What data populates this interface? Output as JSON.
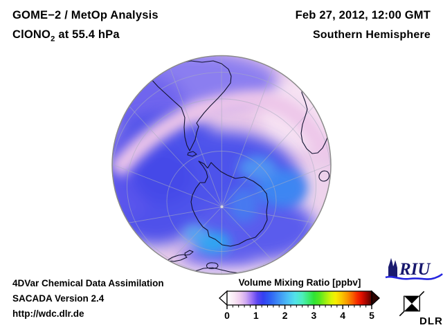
{
  "header": {
    "instrument": "GOME−2 / MetOp Analysis",
    "species_prefix": "ClONO",
    "species_sub": "2",
    "species_suffix": " at 55.4 hPa",
    "datetime": "Feb 27, 2012, 12:00 GMT",
    "hemisphere": "Southern Hemisphere"
  },
  "footer": {
    "line1": "4DVar Chemical Data Assimilation",
    "line2": "SACADA Version 2.4",
    "line3": "http://wdc.dlr.de"
  },
  "colorbar": {
    "title": "Volume Mixing Ratio [ppbv]",
    "min": 0,
    "max": 5,
    "major_ticks": [
      "0",
      "1",
      "2",
      "3",
      "4",
      "5"
    ],
    "minor_tick_step": 0.2,
    "under_arrow_color": "#ffffff",
    "over_arrow_color": "#2e0502",
    "gradient_stops": [
      [
        0.0,
        "#ffffff"
      ],
      [
        0.05,
        "#f8e8f5"
      ],
      [
        0.09,
        "#efcdf0"
      ],
      [
        0.13,
        "#cfaaf2"
      ],
      [
        0.17,
        "#9d74f4"
      ],
      [
        0.21,
        "#5b45f1"
      ],
      [
        0.25,
        "#3340f2"
      ],
      [
        0.3,
        "#2f62f4"
      ],
      [
        0.36,
        "#3f92f5"
      ],
      [
        0.42,
        "#4cc0f6"
      ],
      [
        0.47,
        "#52e2ea"
      ],
      [
        0.52,
        "#4deebc"
      ],
      [
        0.56,
        "#3eeb7a"
      ],
      [
        0.6,
        "#2fe336"
      ],
      [
        0.64,
        "#55e81f"
      ],
      [
        0.68,
        "#9aee12"
      ],
      [
        0.72,
        "#d8f507"
      ],
      [
        0.75,
        "#f7ef02"
      ],
      [
        0.79,
        "#f9c901"
      ],
      [
        0.83,
        "#f99a00"
      ],
      [
        0.87,
        "#f85f00"
      ],
      [
        0.9,
        "#f62b00"
      ],
      [
        0.93,
        "#e01000"
      ],
      [
        0.96,
        "#a80700"
      ],
      [
        1.0,
        "#4f0300"
      ]
    ]
  },
  "map": {
    "projection": "orthographic, Southern Hemisphere",
    "colors": {
      "background_low": "#e9c7e8",
      "pale_high_region": "#f6e2f3",
      "violet_band": "#8b7ef0",
      "mid_blue": "#4d52eb",
      "high_cyan": "#3e86f2",
      "pink_band": "#edc6e9",
      "coastline": "#121230",
      "graticule": "#a8aec0",
      "rim": "#8a8a8a"
    }
  },
  "logos": {
    "riu_label": "RIU",
    "dlr_label": "DLR",
    "riu_color": "#17176d",
    "riu_wave_color": "#2525e0"
  }
}
